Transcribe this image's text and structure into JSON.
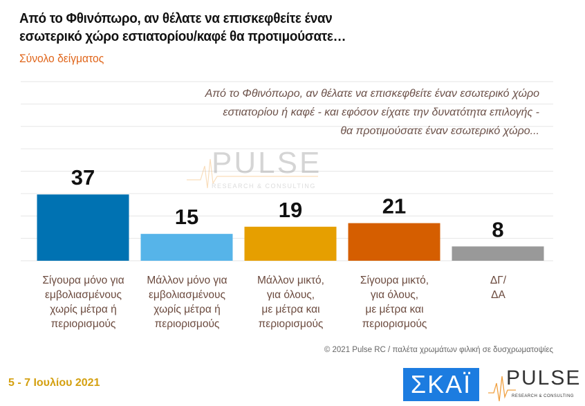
{
  "header": {
    "title_line1": "Από το Φθινόπωρο, αν θέλατε να επισκεφθείτε έναν",
    "title_line2": "εσωτερικό χώρο εστιατορίου/καφέ θα προτιμούσατε…",
    "subtitle": "Σύνολο δείγματος"
  },
  "question": {
    "line1": "Από το Φθινόπωρο, αν θέλατε να επισκεφθείτε έναν εσωτερικό χώρο",
    "line2": "εστιατορίου ή καφέ - και εφόσον είχατε την δυνατότητα επιλογής -",
    "line3": "θα προτιμούσατε έναν εσωτερικό χώρο..."
  },
  "chart_data": {
    "type": "bar",
    "categories": [
      [
        "Σίγουρα μόνο για",
        "εμβολιασμένους",
        "χωρίς μέτρα ή",
        "περιορισμούς"
      ],
      [
        "Μάλλον μόνο για",
        "εμβολιασμένους",
        "χωρίς μέτρα ή",
        "περιορισμούς"
      ],
      [
        "Μάλλον μικτό,",
        "για όλους,",
        "με μέτρα και",
        "περιορισμούς"
      ],
      [
        "Σίγουρα μικτό,",
        "για όλους,",
        "με μέτρα και",
        "περιορισμούς"
      ],
      [
        "ΔΓ/",
        "ΔΑ"
      ]
    ],
    "values": [
      37,
      15,
      19,
      21,
      8
    ],
    "colors": [
      "#0072B2",
      "#56B4E9",
      "#E69F00",
      "#D55E00",
      "#999999"
    ],
    "ylim": [
      0,
      100
    ],
    "grid": true,
    "data_labels": true
  },
  "watermark": {
    "word": "PULSE",
    "tagline": "RESEARCH & CONSULTING"
  },
  "footer": {
    "copyright": "© 2021 Pulse RC  /  παλέτα χρωμάτων φιλική σε δυσχρωματοψίες",
    "dates": "5 - 7  Ιουλίου  2021",
    "skai_logo": "ΣΚΑΪ",
    "pulse_logo": "PULSE",
    "pulse_tagline": "RESEARCH & CONSULTING"
  }
}
